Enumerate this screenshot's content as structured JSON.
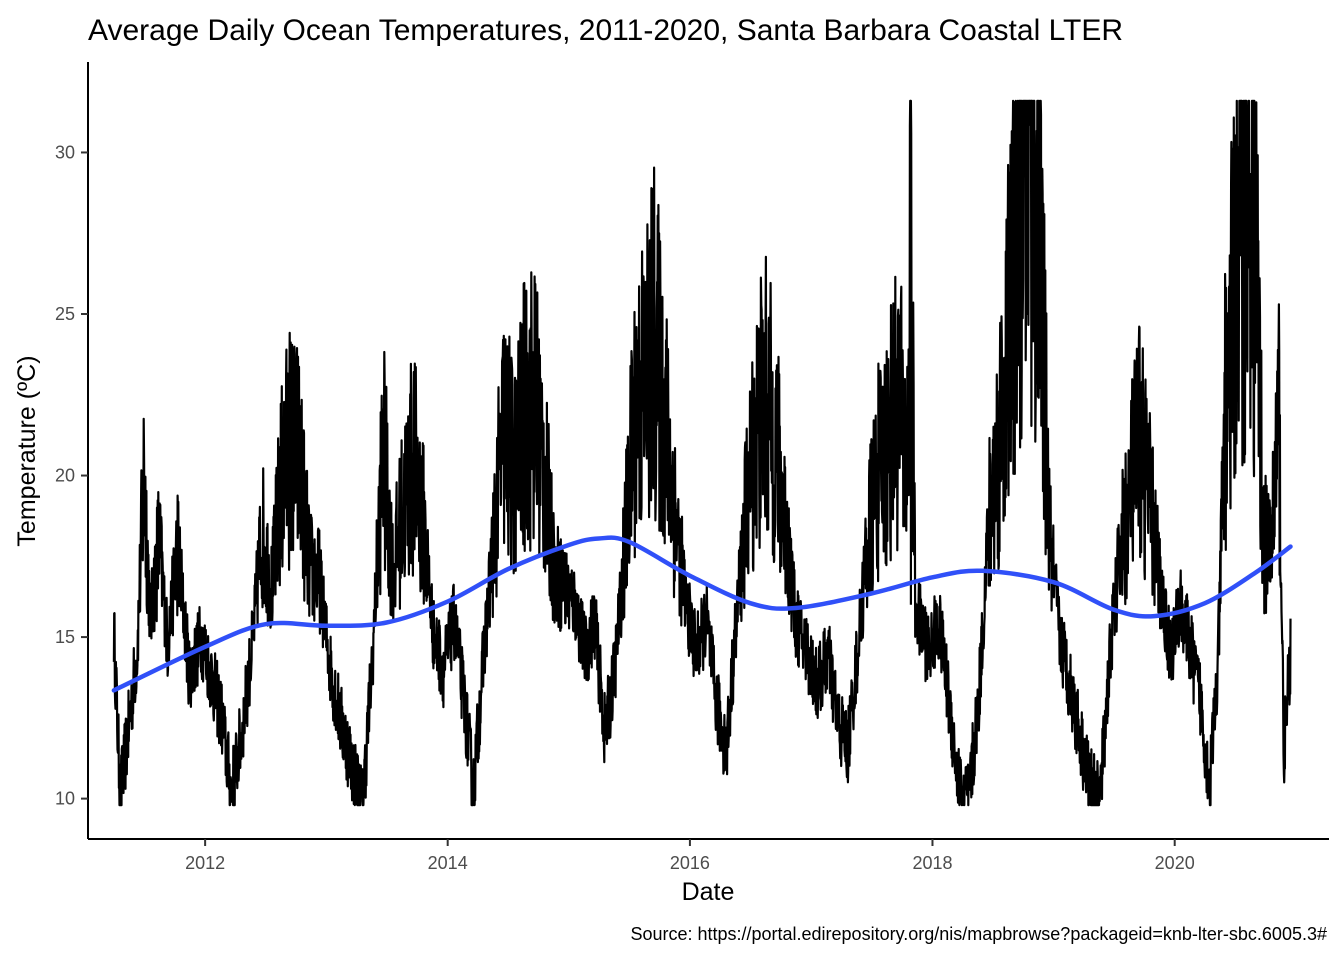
{
  "chart_data": {
    "type": "line",
    "title": "Average Daily Ocean Temperatures, 2011-2020, Santa Barbara Coastal LTER",
    "xlabel": "Date",
    "ylabel": "Temperature (ºC)",
    "caption": "Source: https://portal.edirepository.org/nis/mapbrowse?packageid=knb-lter-sbc.6005.3#",
    "xlim": [
      "2011-01-13",
      "2021-04-10"
    ],
    "ylim": [
      8.75,
      32.8
    ],
    "x_ticks": [
      "2012",
      "2014",
      "2016",
      "2018",
      "2020"
    ],
    "y_ticks": [
      10,
      15,
      20,
      25,
      30
    ],
    "grid": false,
    "legend": "none",
    "colors": {
      "raw": "#000000",
      "smooth": "#3050F8"
    },
    "series": [
      {
        "kind": "daily",
        "date_range": [
          "2011-04-01",
          "2020-12-15"
        ],
        "points": [
          [
            "2011-04-01",
            15.2
          ],
          [
            "2011-04-20",
            10.1
          ],
          [
            "2011-05-10",
            11.7
          ],
          [
            "2011-06-10",
            14.5
          ],
          [
            "2011-07-01",
            20.1
          ],
          [
            "2011-07-20",
            15.5
          ],
          [
            "2011-08-15",
            18.0
          ],
          [
            "2011-09-10",
            14.8
          ],
          [
            "2011-10-10",
            17.8
          ],
          [
            "2011-11-15",
            13.8
          ],
          [
            "2011-12-20",
            15.0
          ],
          [
            "2012-01-15",
            14.0
          ],
          [
            "2012-02-20",
            12.5
          ],
          [
            "2012-03-20",
            10.2
          ],
          [
            "2012-04-20",
            12.0
          ],
          [
            "2012-05-20",
            14.5
          ],
          [
            "2012-06-20",
            18.3
          ],
          [
            "2012-07-20",
            16.5
          ],
          [
            "2012-08-15",
            19.5
          ],
          [
            "2012-09-10",
            21.0
          ],
          [
            "2012-10-10",
            20.5
          ],
          [
            "2012-11-10",
            17.2
          ],
          [
            "2012-12-10",
            16.8
          ],
          [
            "2013-01-10",
            14.2
          ],
          [
            "2013-02-10",
            12.5
          ],
          [
            "2013-03-20",
            11.0
          ],
          [
            "2013-04-20",
            9.8
          ],
          [
            "2013-05-20",
            14.5
          ],
          [
            "2013-06-20",
            20.9
          ],
          [
            "2013-07-20",
            17.0
          ],
          [
            "2013-08-20",
            19.0
          ],
          [
            "2013-09-20",
            20.5
          ],
          [
            "2013-10-20",
            18.5
          ],
          [
            "2013-11-20",
            15.0
          ],
          [
            "2013-12-20",
            14.0
          ],
          [
            "2014-01-20",
            15.5
          ],
          [
            "2014-02-20",
            13.0
          ],
          [
            "2014-03-20",
            10.3
          ],
          [
            "2014-04-20",
            14.5
          ],
          [
            "2014-05-20",
            18.0
          ],
          [
            "2014-06-20",
            21.5
          ],
          [
            "2014-07-20",
            20.0
          ],
          [
            "2014-08-20",
            21.8
          ],
          [
            "2014-09-20",
            22.4
          ],
          [
            "2014-10-20",
            20.0
          ],
          [
            "2014-11-20",
            17.0
          ],
          [
            "2014-12-20",
            16.5
          ],
          [
            "2015-01-20",
            16.0
          ],
          [
            "2015-02-20",
            14.5
          ],
          [
            "2015-03-20",
            15.5
          ],
          [
            "2015-04-20",
            12.0
          ],
          [
            "2015-05-20",
            14.0
          ],
          [
            "2015-06-20",
            18.0
          ],
          [
            "2015-07-20",
            22.0
          ],
          [
            "2015-08-20",
            23.0
          ],
          [
            "2015-09-15",
            24.2
          ],
          [
            "2015-10-15",
            22.0
          ],
          [
            "2015-11-15",
            19.0
          ],
          [
            "2015-12-20",
            16.0
          ],
          [
            "2016-01-20",
            14.5
          ],
          [
            "2016-02-20",
            15.5
          ],
          [
            "2016-03-20",
            13.0
          ],
          [
            "2016-04-20",
            11.5
          ],
          [
            "2016-05-20",
            15.5
          ],
          [
            "2016-06-20",
            19.0
          ],
          [
            "2016-07-20",
            21.5
          ],
          [
            "2016-08-15",
            22.4
          ],
          [
            "2016-09-15",
            21.0
          ],
          [
            "2016-10-15",
            18.5
          ],
          [
            "2016-11-15",
            15.5
          ],
          [
            "2016-12-20",
            14.5
          ],
          [
            "2017-01-20",
            13.5
          ],
          [
            "2017-02-20",
            14.5
          ],
          [
            "2017-03-20",
            12.5
          ],
          [
            "2017-04-20",
            11.5
          ],
          [
            "2017-05-20",
            14.5
          ],
          [
            "2017-06-20",
            18.0
          ],
          [
            "2017-07-20",
            20.0
          ],
          [
            "2017-08-20",
            21.0
          ],
          [
            "2017-09-20",
            22.5
          ],
          [
            "2017-10-15",
            20.0
          ],
          [
            "2017-10-28",
            27.6
          ],
          [
            "2017-11-10",
            16.0
          ],
          [
            "2017-12-20",
            14.5
          ],
          [
            "2018-01-20",
            15.5
          ],
          [
            "2018-02-20",
            13.0
          ],
          [
            "2018-03-20",
            10.5
          ],
          [
            "2018-04-20",
            9.9
          ],
          [
            "2018-05-20",
            13.0
          ],
          [
            "2018-06-20",
            18.5
          ],
          [
            "2018-07-20",
            21.0
          ],
          [
            "2018-08-20",
            24.5
          ],
          [
            "2018-09-20",
            29.0
          ],
          [
            "2018-10-20",
            31.6
          ],
          [
            "2018-11-20",
            27.5
          ],
          [
            "2018-12-20",
            18.0
          ],
          [
            "2019-01-20",
            15.0
          ],
          [
            "2019-02-20",
            13.5
          ],
          [
            "2019-03-20",
            12.0
          ],
          [
            "2019-04-20",
            10.5
          ],
          [
            "2019-05-20",
            9.8
          ],
          [
            "2019-06-20",
            14.5
          ],
          [
            "2019-07-20",
            17.5
          ],
          [
            "2019-08-20",
            19.5
          ],
          [
            "2019-09-20",
            21.2
          ],
          [
            "2019-10-20",
            19.0
          ],
          [
            "2019-11-20",
            16.5
          ],
          [
            "2019-12-20",
            14.5
          ],
          [
            "2020-01-20",
            16.0
          ],
          [
            "2020-02-20",
            14.5
          ],
          [
            "2020-03-20",
            13.0
          ],
          [
            "2020-04-15",
            10.4
          ],
          [
            "2020-05-10",
            14.0
          ],
          [
            "2020-06-01",
            22.0
          ],
          [
            "2020-07-01",
            26.0
          ],
          [
            "2020-08-01",
            28.5
          ],
          [
            "2020-08-20",
            29.5
          ],
          [
            "2020-09-10",
            23.5
          ],
          [
            "2020-09-25",
            18.0
          ],
          [
            "2020-10-15",
            17.5
          ],
          [
            "2020-11-10",
            21.8
          ],
          [
            "2020-11-25",
            11.4
          ],
          [
            "2020-12-15",
            14.5
          ]
        ]
      },
      {
        "kind": "smooth",
        "points": [
          [
            "2011-04-01",
            13.35
          ],
          [
            "2012-01-01",
            14.7
          ],
          [
            "2012-07-01",
            15.4
          ],
          [
            "2013-01-01",
            15.35
          ],
          [
            "2013-07-01",
            15.45
          ],
          [
            "2014-01-01",
            16.1
          ],
          [
            "2014-07-01",
            17.1
          ],
          [
            "2015-01-01",
            17.85
          ],
          [
            "2015-04-01",
            18.05
          ],
          [
            "2015-07-01",
            17.95
          ],
          [
            "2016-01-01",
            16.9
          ],
          [
            "2016-07-01",
            16.05
          ],
          [
            "2016-11-15",
            15.9
          ],
          [
            "2017-07-01",
            16.35
          ],
          [
            "2018-01-01",
            16.85
          ],
          [
            "2018-06-01",
            17.05
          ],
          [
            "2019-01-01",
            16.7
          ],
          [
            "2019-07-01",
            15.85
          ],
          [
            "2019-11-01",
            15.65
          ],
          [
            "2020-04-01",
            16.05
          ],
          [
            "2020-09-01",
            17.0
          ],
          [
            "2020-12-15",
            17.8
          ]
        ]
      }
    ]
  }
}
